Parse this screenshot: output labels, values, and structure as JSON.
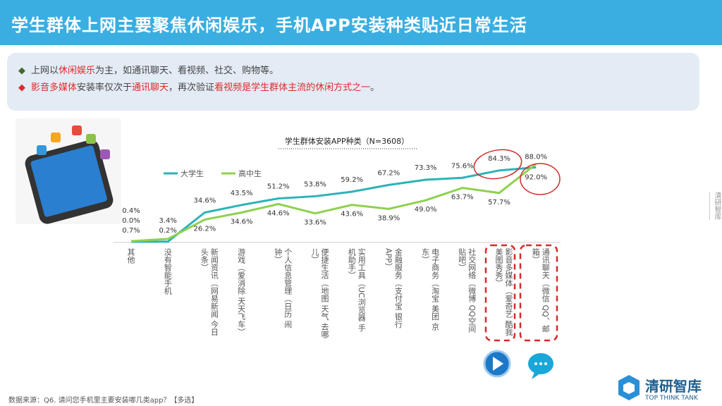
{
  "title": "学生群体上网主要聚焦休闲娱乐，手机APP安装种类贴近日常生活",
  "bullets": [
    {
      "parts": [
        "上网以",
        "休闲娱乐",
        "为主，如通讯聊天、看视频、社交、购物等。"
      ],
      "color": "#3f6b2a"
    },
    {
      "parts": [
        "影音多媒体",
        "安装率仅次于",
        "通讯聊天",
        "，再次验证",
        "看视频是学生群体主流的休闲方式之一",
        "。"
      ],
      "color": "#e02a2a"
    }
  ],
  "side_label": "清研智库",
  "source": "数据来源：Q6. 请问您手机里主要安装哪几类app？【多选】",
  "logo": {
    "cn": "清研智库",
    "en": "TOP THINK TANK"
  },
  "chart_data": {
    "type": "line",
    "title": "学生群体安装APP种类（N=3608）",
    "categories": [
      "其他",
      "没有智能手机",
      "新闻资讯（网易新闻 今日头条）",
      "游戏（爱消除 天天飞车）",
      "个人信息管理（日历 闹钟）",
      "便捷生活（地图 天气 去哪儿）",
      "实用工具（UC浏览器 手机助手）",
      "金融服务（支付宝 银行APP）",
      "电子商务（淘宝 美团 京东）",
      "社交网络（微博 QQ空间 贴吧）",
      "影音多媒体（爱奇艺 酷我 美图秀秀）",
      "通讯聊天（微信 QQ、邮箱）"
    ],
    "series": [
      {
        "name": "大学生",
        "color": "#2bb3b8",
        "values": [
          0.0,
          0.2,
          34.6,
          43.5,
          51.2,
          53.8,
          59.2,
          67.2,
          73.3,
          75.6,
          84.3,
          88.0
        ]
      },
      {
        "name": "高中生",
        "color": "#8fd14f",
        "values": [
          0.7,
          3.4,
          26.2,
          34.6,
          44.6,
          33.6,
          43.6,
          38.9,
          49.0,
          63.7,
          57.7,
          92.0
        ]
      }
    ],
    "extra_label": "0.4%",
    "ylim": [
      0,
      100
    ],
    "legend": "top-left",
    "highlight_color": "#d42a2a"
  }
}
